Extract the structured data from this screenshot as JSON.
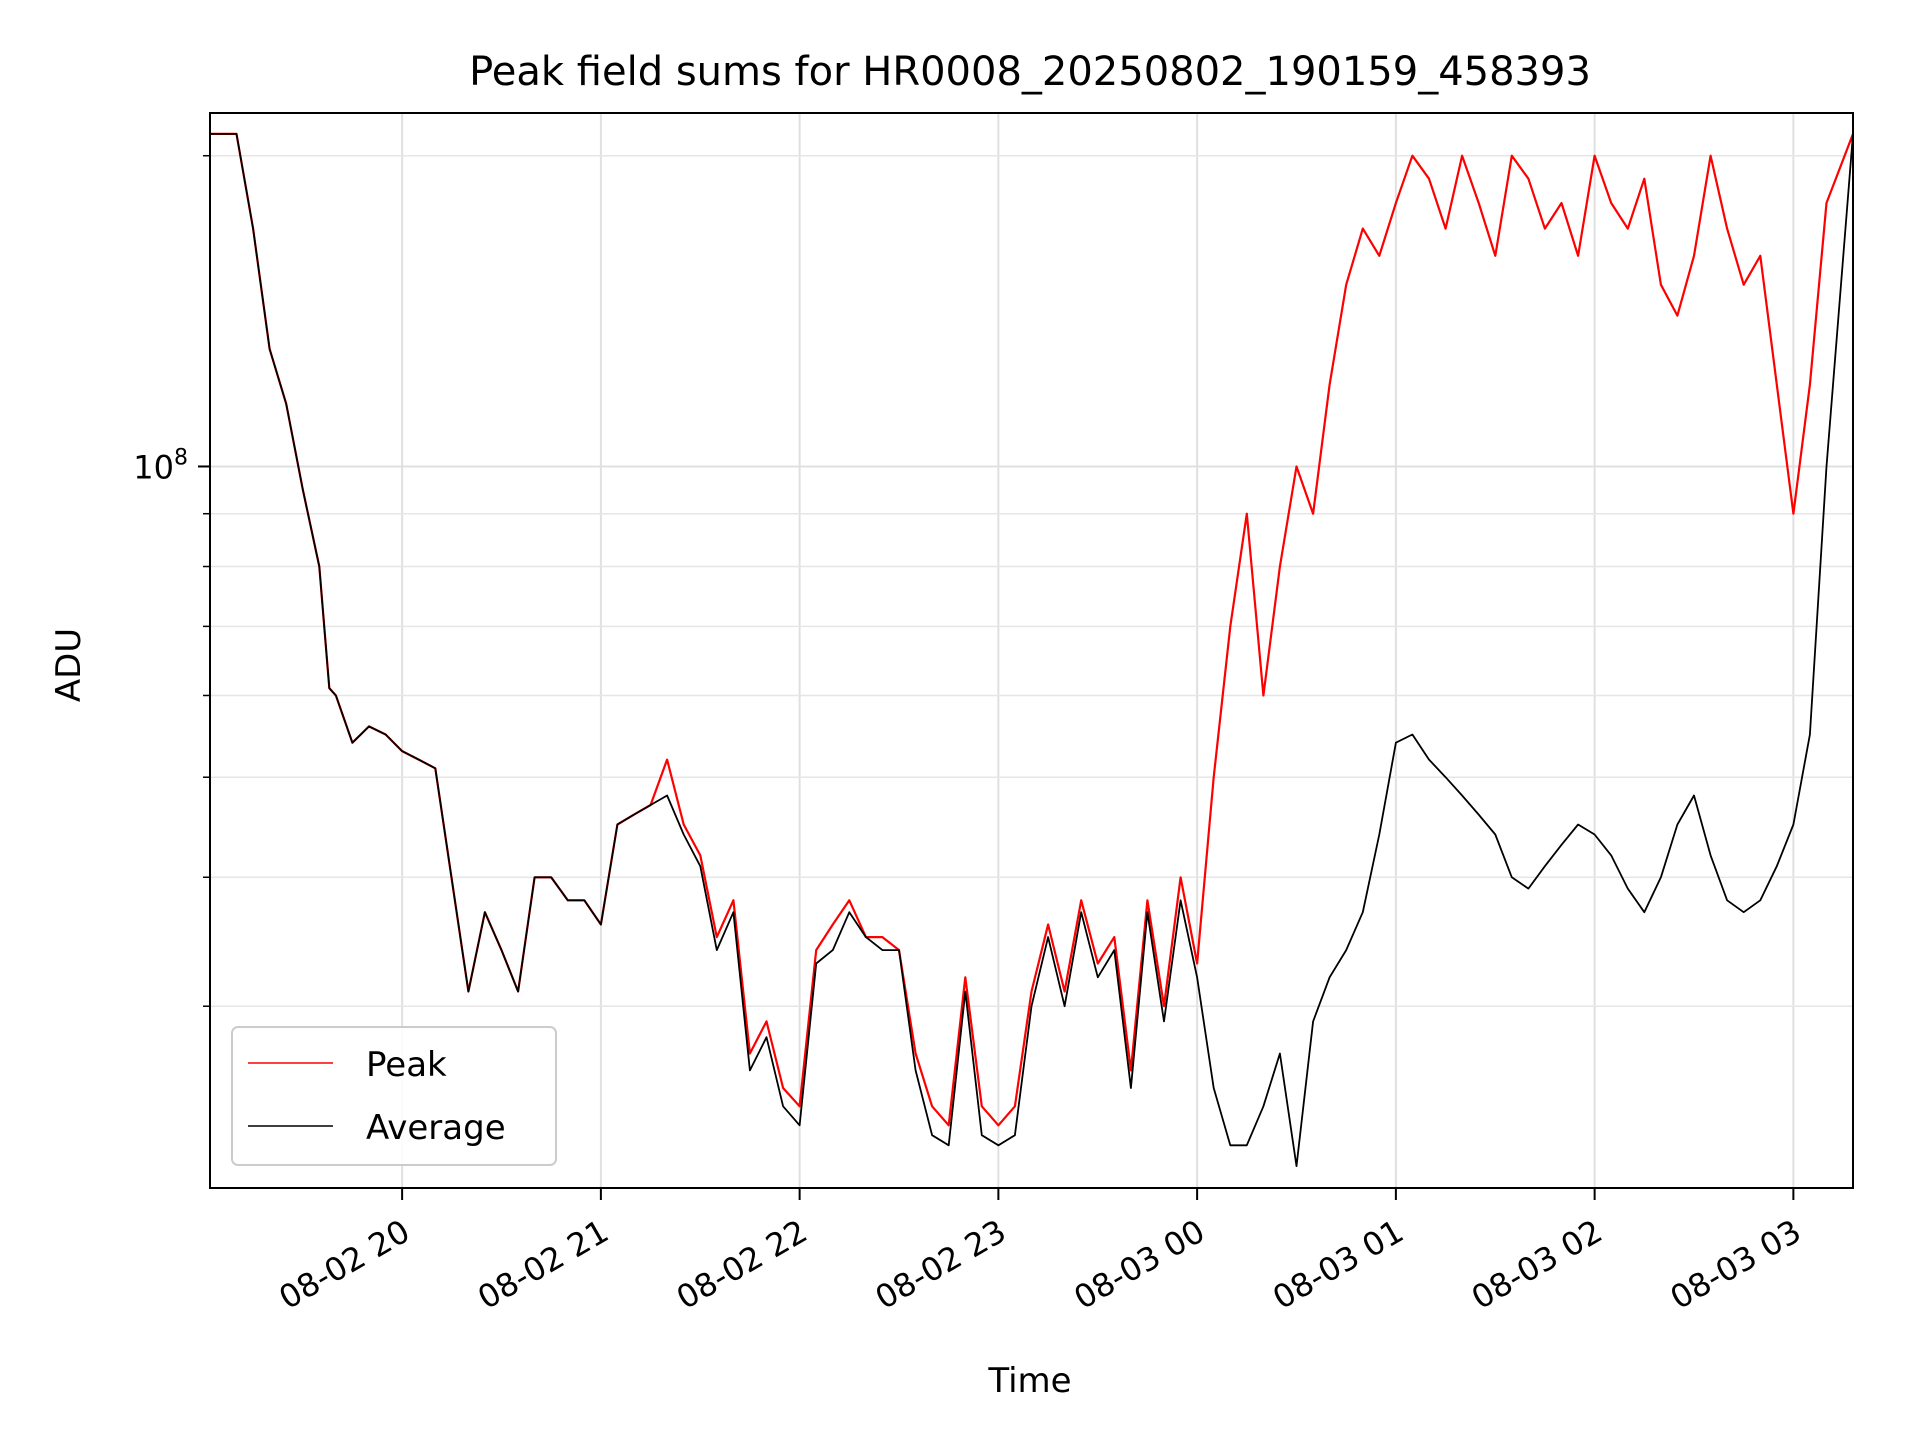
{
  "chart_data": {
    "type": "line",
    "title": "Peak field sums for HR0008_20250802_190159_458393",
    "xlabel": "Time",
    "ylabel": "ADU",
    "x_start": "2025-08-02 19:02",
    "x_end": "2025-08-03 03:18",
    "xlim": [
      "2025-08-02 19:02",
      "2025-08-03 03:18"
    ],
    "yscale": "log",
    "ylim": [
      20000000,
      220000000
    ],
    "x_ticks": [
      "08-02 20",
      "08-02 21",
      "08-02 22",
      "08-02 23",
      "08-03 00",
      "08-03 01",
      "08-03 02",
      "08-03 03"
    ],
    "x_tick_times": [
      "2025-08-02 20:00",
      "2025-08-02 21:00",
      "2025-08-02 22:00",
      "2025-08-02 23:00",
      "2025-08-03 00:00",
      "2025-08-03 01:00",
      "2025-08-03 02:00",
      "2025-08-03 03:00"
    ],
    "y_major_ticks": [
      {
        "value": 100000000,
        "base": "10",
        "exp": "8"
      }
    ],
    "y_minor_ticks": [
      30000000,
      40000000,
      50000000,
      60000000,
      70000000,
      80000000,
      90000000,
      200000000
    ],
    "grid": true,
    "legend_position": "lower-left",
    "series": [
      {
        "name": "Peak",
        "color": "#ff0000",
        "x": [
          "2025-08-02 19:02",
          "2025-08-02 19:10",
          "2025-08-02 19:15",
          "2025-08-02 19:20",
          "2025-08-02 19:25",
          "2025-08-02 19:30",
          "2025-08-02 19:35",
          "2025-08-02 19:38",
          "2025-08-02 19:40",
          "2025-08-02 19:45",
          "2025-08-02 19:50",
          "2025-08-02 19:55",
          "2025-08-02 20:00",
          "2025-08-02 20:05",
          "2025-08-02 20:10",
          "2025-08-02 20:20",
          "2025-08-02 20:25",
          "2025-08-02 20:30",
          "2025-08-02 20:35",
          "2025-08-02 20:40",
          "2025-08-02 20:45",
          "2025-08-02 20:50",
          "2025-08-02 20:55",
          "2025-08-02 21:00",
          "2025-08-02 21:05",
          "2025-08-02 21:10",
          "2025-08-02 21:15",
          "2025-08-02 21:20",
          "2025-08-02 21:25",
          "2025-08-02 21:30",
          "2025-08-02 21:35",
          "2025-08-02 21:40",
          "2025-08-02 21:45",
          "2025-08-02 21:50",
          "2025-08-02 21:55",
          "2025-08-02 22:00",
          "2025-08-02 22:05",
          "2025-08-02 22:10",
          "2025-08-02 22:15",
          "2025-08-02 22:20",
          "2025-08-02 22:25",
          "2025-08-02 22:30",
          "2025-08-02 22:35",
          "2025-08-02 22:40",
          "2025-08-02 22:45",
          "2025-08-02 22:50",
          "2025-08-02 22:55",
          "2025-08-02 23:00",
          "2025-08-02 23:05",
          "2025-08-02 23:10",
          "2025-08-02 23:15",
          "2025-08-02 23:20",
          "2025-08-02 23:25",
          "2025-08-02 23:30",
          "2025-08-02 23:35",
          "2025-08-02 23:40",
          "2025-08-02 23:45",
          "2025-08-02 23:50",
          "2025-08-02 23:55",
          "2025-08-03 00:00",
          "2025-08-03 00:05",
          "2025-08-03 00:10",
          "2025-08-03 00:15",
          "2025-08-03 00:20",
          "2025-08-03 00:25",
          "2025-08-03 00:30",
          "2025-08-03 00:35",
          "2025-08-03 00:40",
          "2025-08-03 00:45",
          "2025-08-03 00:50",
          "2025-08-03 00:55",
          "2025-08-03 01:00",
          "2025-08-03 01:05",
          "2025-08-03 01:10",
          "2025-08-03 01:15",
          "2025-08-03 01:20",
          "2025-08-03 01:25",
          "2025-08-03 01:30",
          "2025-08-03 01:35",
          "2025-08-03 01:40",
          "2025-08-03 01:45",
          "2025-08-03 01:50",
          "2025-08-03 01:55",
          "2025-08-03 02:00",
          "2025-08-03 02:05",
          "2025-08-03 02:10",
          "2025-08-03 02:15",
          "2025-08-03 02:20",
          "2025-08-03 02:25",
          "2025-08-03 02:30",
          "2025-08-03 02:35",
          "2025-08-03 02:40",
          "2025-08-03 02:45",
          "2025-08-03 02:50",
          "2025-08-03 02:55",
          "2025-08-03 03:00",
          "2025-08-03 03:05",
          "2025-08-03 03:10",
          "2025-08-03 03:18"
        ],
        "values": [
          210000000,
          210000000,
          170000000,
          130000000,
          115000000,
          95000000,
          80000000,
          61000000,
          60000000,
          54000000,
          56000000,
          55000000,
          53000000,
          52000000,
          51000000,
          31000000,
          37000000,
          34000000,
          31000000,
          40000000,
          40000000,
          38000000,
          38000000,
          36000000,
          45000000,
          46000000,
          47000000,
          52000000,
          45000000,
          42000000,
          35000000,
          38000000,
          27000000,
          29000000,
          25000000,
          24000000,
          34000000,
          36000000,
          38000000,
          35000000,
          35000000,
          34000000,
          27000000,
          24000000,
          23000000,
          32000000,
          24000000,
          23000000,
          24000000,
          31000000,
          36000000,
          31000000,
          38000000,
          33000000,
          35000000,
          26000000,
          38000000,
          30000000,
          40000000,
          33000000,
          50000000,
          70000000,
          90000000,
          60000000,
          80000000,
          100000000,
          90000000,
          120000000,
          150000000,
          170000000,
          160000000,
          180000000,
          200000000,
          190000000,
          170000000,
          200000000,
          180000000,
          160000000,
          200000000,
          190000000,
          170000000,
          180000000,
          160000000,
          200000000,
          180000000,
          170000000,
          190000000,
          150000000,
          140000000,
          160000000,
          200000000,
          170000000,
          150000000,
          160000000,
          120000000,
          90000000,
          120000000,
          180000000,
          210000000
        ]
      },
      {
        "name": "Average",
        "color": "#000000",
        "x": [
          "2025-08-02 19:02",
          "2025-08-02 19:10",
          "2025-08-02 19:15",
          "2025-08-02 19:20",
          "2025-08-02 19:25",
          "2025-08-02 19:30",
          "2025-08-02 19:35",
          "2025-08-02 19:38",
          "2025-08-02 19:40",
          "2025-08-02 19:45",
          "2025-08-02 19:50",
          "2025-08-02 19:55",
          "2025-08-02 20:00",
          "2025-08-02 20:05",
          "2025-08-02 20:10",
          "2025-08-02 20:20",
          "2025-08-02 20:25",
          "2025-08-02 20:30",
          "2025-08-02 20:35",
          "2025-08-02 20:40",
          "2025-08-02 20:45",
          "2025-08-02 20:50",
          "2025-08-02 20:55",
          "2025-08-02 21:00",
          "2025-08-02 21:05",
          "2025-08-02 21:10",
          "2025-08-02 21:15",
          "2025-08-02 21:20",
          "2025-08-02 21:25",
          "2025-08-02 21:30",
          "2025-08-02 21:35",
          "2025-08-02 21:40",
          "2025-08-02 21:45",
          "2025-08-02 21:50",
          "2025-08-02 21:55",
          "2025-08-02 22:00",
          "2025-08-02 22:05",
          "2025-08-02 22:10",
          "2025-08-02 22:15",
          "2025-08-02 22:20",
          "2025-08-02 22:25",
          "2025-08-02 22:30",
          "2025-08-02 22:35",
          "2025-08-02 22:40",
          "2025-08-02 22:45",
          "2025-08-02 22:50",
          "2025-08-02 22:55",
          "2025-08-02 23:00",
          "2025-08-02 23:05",
          "2025-08-02 23:10",
          "2025-08-02 23:15",
          "2025-08-02 23:20",
          "2025-08-02 23:25",
          "2025-08-02 23:30",
          "2025-08-02 23:35",
          "2025-08-02 23:40",
          "2025-08-02 23:45",
          "2025-08-02 23:50",
          "2025-08-02 23:55",
          "2025-08-03 00:00",
          "2025-08-03 00:05",
          "2025-08-03 00:10",
          "2025-08-03 00:15",
          "2025-08-03 00:20",
          "2025-08-03 00:25",
          "2025-08-03 00:30",
          "2025-08-03 00:35",
          "2025-08-03 00:40",
          "2025-08-03 00:45",
          "2025-08-03 00:50",
          "2025-08-03 00:55",
          "2025-08-03 01:00",
          "2025-08-03 01:05",
          "2025-08-03 01:10",
          "2025-08-03 01:15",
          "2025-08-03 01:20",
          "2025-08-03 01:25",
          "2025-08-03 01:30",
          "2025-08-03 01:35",
          "2025-08-03 01:40",
          "2025-08-03 01:45",
          "2025-08-03 01:50",
          "2025-08-03 01:55",
          "2025-08-03 02:00",
          "2025-08-03 02:05",
          "2025-08-03 02:10",
          "2025-08-03 02:15",
          "2025-08-03 02:20",
          "2025-08-03 02:25",
          "2025-08-03 02:30",
          "2025-08-03 02:35",
          "2025-08-03 02:40",
          "2025-08-03 02:45",
          "2025-08-03 02:50",
          "2025-08-03 02:55",
          "2025-08-03 03:00",
          "2025-08-03 03:05",
          "2025-08-03 03:10",
          "2025-08-03 03:18"
        ],
        "values": [
          210000000,
          210000000,
          170000000,
          130000000,
          115000000,
          95000000,
          80000000,
          61000000,
          60000000,
          54000000,
          56000000,
          55000000,
          53000000,
          52000000,
          51000000,
          31000000,
          37000000,
          34000000,
          31000000,
          40000000,
          40000000,
          38000000,
          38000000,
          36000000,
          45000000,
          46000000,
          47000000,
          48000000,
          44000000,
          41000000,
          34000000,
          37000000,
          26000000,
          28000000,
          24000000,
          23000000,
          33000000,
          34000000,
          37000000,
          35000000,
          34000000,
          34000000,
          26000000,
          22500000,
          22000000,
          31000000,
          22500000,
          22000000,
          22500000,
          30000000,
          35000000,
          30000000,
          37000000,
          32000000,
          34000000,
          25000000,
          37000000,
          29000000,
          38000000,
          32000000,
          25000000,
          22000000,
          22000000,
          24000000,
          27000000,
          21000000,
          29000000,
          32000000,
          34000000,
          37000000,
          44000000,
          54000000,
          55000000,
          52000000,
          50000000,
          48000000,
          46000000,
          44000000,
          40000000,
          39000000,
          41000000,
          43000000,
          45000000,
          44000000,
          42000000,
          39000000,
          37000000,
          40000000,
          45000000,
          48000000,
          42000000,
          38000000,
          37000000,
          38000000,
          41000000,
          45000000,
          55000000,
          100000000,
          210000000
        ]
      }
    ]
  }
}
